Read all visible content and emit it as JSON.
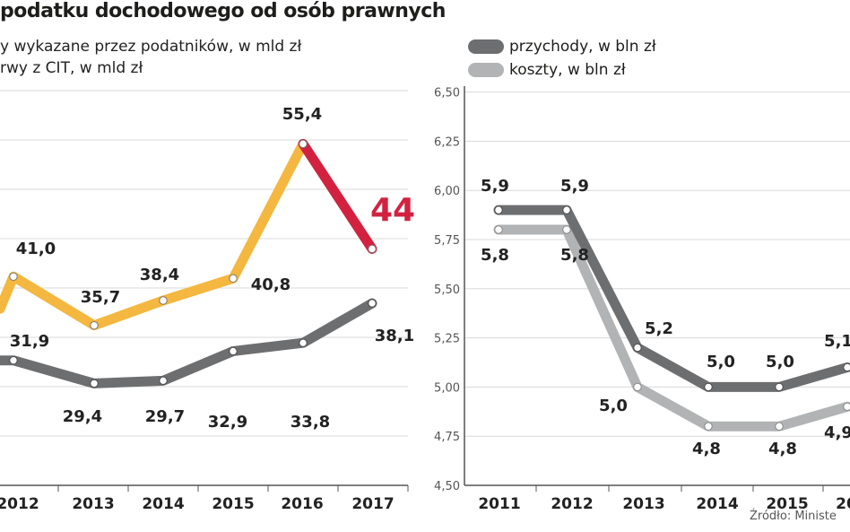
{
  "header": {
    "title": "podatku dochodowego od osób prawnych",
    "subtitle_1": "y wykazane przez podatników, w mld zł",
    "subtitle_2": "rwy z CIT, w mld zł"
  },
  "legend": {
    "items": [
      {
        "label": "przychody, w bln zł",
        "color": "#6d6e70"
      },
      {
        "label": "koszty, w bln zł",
        "color": "#b1b3b4"
      }
    ]
  },
  "source": "Źródło: Ministe",
  "colors": {
    "yellow": "#f4b73f",
    "red": "#d2223f",
    "dark_gray": "#6d6e70",
    "light_gray": "#b1b3b4"
  },
  "chart_data": [
    {
      "type": "line",
      "categories": [
        "2012",
        "2013",
        "2014",
        "2015",
        "2016",
        "2017"
      ],
      "series": [
        {
          "values": [
            41.0,
            35.7,
            38.4,
            40.8,
            55.4,
            44
          ],
          "labels": [
            "41,0",
            "35,7",
            "38,4",
            "40,8",
            "55,4",
            "44"
          ],
          "color": "#f4b73f",
          "last_segment_color": "#d2223f"
        },
        {
          "values": [
            31.9,
            29.4,
            29.7,
            32.9,
            33.8,
            38.1
          ],
          "labels": [
            "31,9",
            "29,4",
            "29,7",
            "32,9",
            "33,8",
            "38,1"
          ],
          "color": "#6d6e70"
        }
      ],
      "grid": true
    },
    {
      "type": "line",
      "categories": [
        "2011",
        "2012",
        "2013",
        "2014",
        "2015",
        "20"
      ],
      "series": [
        {
          "name": "przychody, w bln zł",
          "values": [
            5.9,
            5.9,
            5.2,
            5.0,
            5.0,
            5.1
          ],
          "labels": [
            "5,9",
            "5,9",
            "5,2",
            "5,0",
            "5,0",
            "5,1"
          ],
          "color": "#6d6e70"
        },
        {
          "name": "koszty, w bln zł",
          "values": [
            5.8,
            5.8,
            5.0,
            4.8,
            4.8,
            4.9
          ],
          "labels": [
            "5,8",
            "5,8",
            "5,0",
            "4,8",
            "4,8",
            "4,9"
          ],
          "color": "#b1b3b4"
        }
      ],
      "yticks": [
        "6,50",
        "6,25",
        "6,00",
        "5,75",
        "5,50",
        "5,25",
        "5,00",
        "4,75",
        "4,50"
      ],
      "ylim": [
        4.5,
        6.5
      ],
      "grid": true
    }
  ]
}
